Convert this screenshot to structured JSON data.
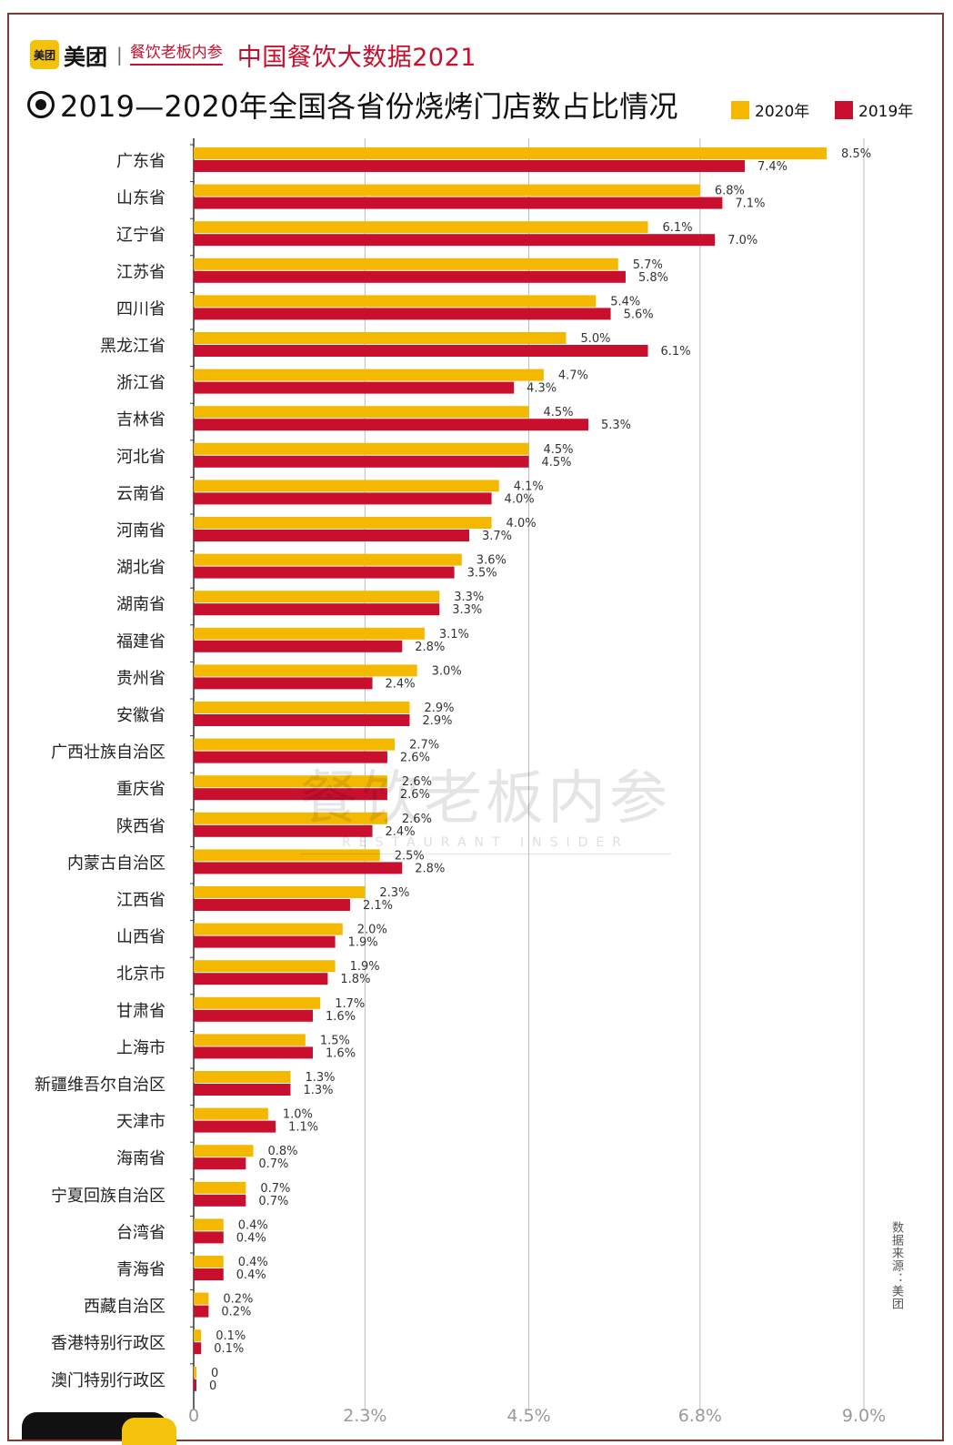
{
  "header": {
    "brand_icon_text": "美团",
    "brand_name": "美团",
    "brand_separator": "|",
    "insider_logo": "餐饮老板内参",
    "series_title": "中国餐饮大数据2021"
  },
  "footer": {
    "source": "数据来源：美团"
  },
  "watermark": {
    "main": "餐饮老板内参",
    "sub": "RESTAURANT INSIDER"
  },
  "chart_data": {
    "type": "bar",
    "orientation": "horizontal",
    "title": "2019—2020年全国各省份烧烤门店数占比情况",
    "categories": [
      "广东省",
      "山东省",
      "辽宁省",
      "江苏省",
      "四川省",
      "黑龙江省",
      "浙江省",
      "吉林省",
      "河北省",
      "云南省",
      "河南省",
      "湖北省",
      "湖南省",
      "福建省",
      "贵州省",
      "安徽省",
      "广西壮族自治区",
      "重庆省",
      "陕西省",
      "内蒙古自治区",
      "江西省",
      "山西省",
      "北京市",
      "甘肃省",
      "上海市",
      "新疆维吾尔自治区",
      "天津市",
      "海南省",
      "宁夏回族自治区",
      "台湾省",
      "青海省",
      "西藏自治区",
      "香港特别行政区",
      "澳门特别行政区"
    ],
    "series": [
      {
        "name": "2020年",
        "color": "#f5b800",
        "values": [
          8.5,
          6.8,
          6.1,
          5.7,
          5.4,
          5.0,
          4.7,
          4.5,
          4.5,
          4.1,
          4.0,
          3.6,
          3.3,
          3.1,
          3.0,
          2.9,
          2.7,
          2.6,
          2.6,
          2.5,
          2.3,
          2.0,
          1.9,
          1.7,
          1.5,
          1.3,
          1.0,
          0.8,
          0.7,
          0.4,
          0.4,
          0.2,
          0.1,
          0
        ],
        "labels": [
          "8.5%",
          "6.8%",
          "6.1%",
          "5.7%",
          "5.4%",
          "5.0%",
          "4.7%",
          "4.5%",
          "4.5%",
          "4.1%",
          "4.0%",
          "3.6%",
          "3.3%",
          "3.1%",
          "3.0%",
          "2.9%",
          "2.7%",
          "2.6%",
          "2.6%",
          "2.5%",
          "2.3%",
          "2.0%",
          "1.9%",
          "1.7%",
          "1.5%",
          "1.3%",
          "1.0%",
          "0.8%",
          "0.7%",
          "0.4%",
          "0.4%",
          "0.2%",
          "0.1%",
          "0"
        ]
      },
      {
        "name": "2019年",
        "color": "#c8102e",
        "values": [
          7.4,
          7.1,
          7.0,
          5.8,
          5.6,
          6.1,
          4.3,
          5.3,
          4.5,
          4.0,
          3.7,
          3.5,
          3.3,
          2.8,
          2.4,
          2.9,
          2.6,
          2.6,
          2.4,
          2.8,
          2.1,
          1.9,
          1.8,
          1.6,
          1.6,
          1.3,
          1.1,
          0.7,
          0.7,
          0.4,
          0.4,
          0.2,
          0.1,
          0
        ],
        "labels": [
          "7.4%",
          "7.1%",
          "7.0%",
          "5.8%",
          "5.6%",
          "6.1%",
          "4.3%",
          "5.3%",
          "4.5%",
          "4.0%",
          "3.7%",
          "3.5%",
          "3.3%",
          "2.8%",
          "2.4%",
          "2.9%",
          "2.6%",
          "2.6%",
          "2.4%",
          "2.8%",
          "2.1%",
          "1.9%",
          "1.8%",
          "1.6%",
          "1.6%",
          "1.3%",
          "1.1%",
          "0.7%",
          "0.7%",
          "0.4%",
          "0.4%",
          "0.2%",
          "0.1%",
          "0"
        ]
      }
    ],
    "xlim": [
      0,
      9.0
    ],
    "xticks": [
      0,
      2.3,
      4.5,
      6.8,
      9.0
    ],
    "xtick_labels": [
      "0",
      "2.3%",
      "4.5%",
      "6.8%",
      "9.0%"
    ],
    "grid": "vertical",
    "legend_position": "top-right"
  }
}
